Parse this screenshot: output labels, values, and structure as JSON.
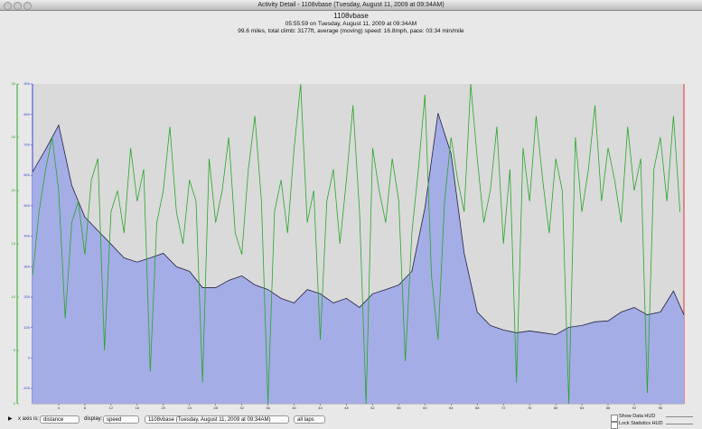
{
  "window": {
    "title": "Activity Detail - 1108vbase  (Tuesday, August 11, 2009 at 09:34AM)"
  },
  "header": {
    "name": "1108vbase",
    "subtitle": "05:55:59 on Tuesday, August 11, 2009 at 09:34AM",
    "summary": "99.6 miles, total climb: 3177ft, average (moving) speed: 16.8mph, pace: 03:34 min/mile"
  },
  "chart_data": {
    "type": "line",
    "xlim": [
      0,
      99.6
    ],
    "xticks": [
      4,
      8,
      12,
      16,
      20,
      24,
      28,
      32,
      36,
      40,
      44,
      48,
      52,
      56,
      60,
      64,
      68,
      72,
      76,
      80,
      84,
      88,
      92,
      96
    ],
    "ylim": [
      -150,
      900
    ],
    "yticks": [
      -100,
      0,
      100,
      200,
      300,
      400,
      500,
      600,
      700,
      800,
      900
    ],
    "y2lim": [
      0,
      30
    ],
    "y2ticks": [
      0,
      5,
      10,
      15,
      20,
      25,
      30
    ],
    "series": [
      {
        "type": "area",
        "color": "#a4ade6",
        "x": [
          0,
          2,
          4,
          6,
          8,
          10,
          12,
          14,
          16,
          18,
          20,
          22,
          24,
          26,
          28,
          30,
          32,
          34,
          36,
          38,
          40,
          42,
          44,
          46,
          48,
          50,
          52,
          54,
          56,
          58,
          60,
          62,
          64,
          66,
          68,
          70,
          72,
          74,
          76,
          78,
          80,
          82,
          84,
          86,
          88,
          90,
          92,
          94,
          96,
          98,
          99.6
        ],
        "values": [
          611,
          685,
          765,
          567,
          463,
          418,
          374,
          329,
          315,
          329,
          344,
          300,
          285,
          231,
          231,
          255,
          270,
          240,
          225,
          196,
          181,
          225,
          211,
          181,
          196,
          166,
          211,
          225,
          240,
          285,
          493,
          804,
          671,
          344,
          151,
          107,
          92,
          83,
          89,
          83,
          77,
          101,
          107,
          119,
          122,
          151,
          166,
          142,
          151,
          220,
          142
        ]
      },
      {
        "type": "line",
        "axis": "y2",
        "color": "#2aa52a",
        "x": [
          0,
          1,
          2,
          3,
          4,
          5,
          6,
          7,
          8,
          9,
          10,
          11,
          12,
          13,
          14,
          15,
          16,
          17,
          18,
          19,
          20,
          21,
          22,
          23,
          24,
          25,
          26,
          27,
          28,
          29,
          30,
          31,
          32,
          33,
          34,
          35,
          36,
          37,
          38,
          39,
          40,
          41,
          42,
          43,
          44,
          45,
          46,
          47,
          48,
          49,
          50,
          51,
          52,
          53,
          54,
          55,
          56,
          57,
          58,
          59,
          60,
          61,
          62,
          63,
          64,
          65,
          66,
          67,
          68,
          69,
          70,
          71,
          72,
          73,
          74,
          75,
          76,
          77,
          78,
          79,
          80,
          81,
          82,
          83,
          84,
          85,
          86,
          87,
          88,
          89,
          90,
          91,
          92,
          93,
          94,
          95,
          96,
          97,
          98,
          99
        ],
        "values": [
          12,
          18,
          22,
          25,
          20,
          8,
          17,
          19,
          14,
          21,
          23,
          5,
          18,
          20,
          16,
          24,
          19,
          22,
          3,
          17,
          20,
          26,
          18,
          15,
          21,
          19,
          2,
          23,
          17,
          20,
          25,
          16,
          14,
          22,
          27,
          19,
          0,
          18,
          21,
          16,
          24,
          30,
          17,
          20,
          6,
          19,
          22,
          15,
          21,
          28,
          18,
          0,
          24,
          20,
          17,
          23,
          19,
          4,
          16,
          22,
          29,
          12,
          6,
          19,
          25,
          21,
          18,
          30,
          23,
          17,
          20,
          26,
          15,
          22,
          2,
          24,
          19,
          27,
          21,
          16,
          23,
          20,
          0,
          25,
          18,
          22,
          28,
          19,
          24,
          21,
          17,
          26,
          20,
          23,
          1,
          22,
          25,
          19,
          27,
          18
        ]
      }
    ]
  },
  "controls": {
    "x_axis_label": "x axis is:",
    "x_axis": "distance",
    "display_label": "display:",
    "display": "speed",
    "activity": "1108vbase  (Tuesday, August 11, 2009 at 09:34AM)",
    "laps": "all laps",
    "show_data_hud": "Show Data HUD",
    "lock_stats_hud": "Lock Statistics HUD"
  }
}
